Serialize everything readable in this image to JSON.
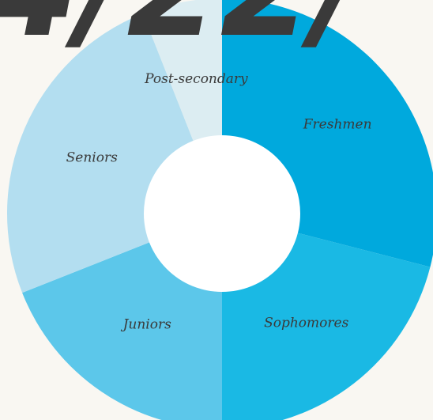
{
  "chart_data": {
    "type": "pie",
    "donut": true,
    "title": "",
    "categories": [
      "Freshmen",
      "Sophomores",
      "Juniors",
      "Seniors",
      "Post-secondary"
    ],
    "values": [
      29,
      21,
      19,
      25,
      6
    ],
    "colors": [
      "#00a9dd",
      "#1ab9e4",
      "#5cc7ea",
      "#b3def0",
      "#dcedf2"
    ],
    "start_angle_deg": 0,
    "direction": "clockwise",
    "legend": "none",
    "labels_on_slices": true
  },
  "header_fragment": {
    "text": "4/22/",
    "color": "#3a3a3a"
  }
}
